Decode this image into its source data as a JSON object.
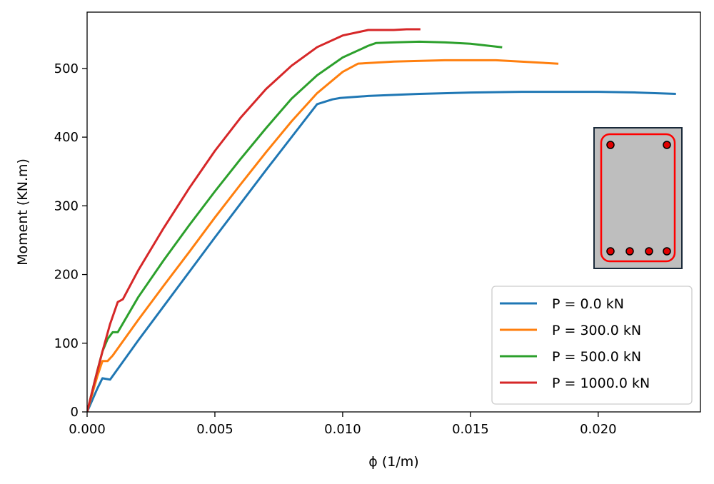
{
  "chart_data": {
    "type": "line",
    "title": "",
    "xlabel": "ϕ (1/m)",
    "ylabel": "Moment (KN.m)",
    "xlim": [
      0.0,
      0.024
    ],
    "ylim": [
      0,
      582
    ],
    "xticks": [
      0.0,
      0.005,
      0.01,
      0.015,
      0.02
    ],
    "xtick_labels": [
      "0.000",
      "0.005",
      "0.010",
      "0.015",
      "0.020"
    ],
    "yticks": [
      0,
      100,
      200,
      300,
      400,
      500
    ],
    "ytick_labels": [
      "0",
      "100",
      "200",
      "300",
      "400",
      "500"
    ],
    "grid": false,
    "legend_position": "lower-right",
    "series": [
      {
        "name": "P = 0.0 kN",
        "color": "#1f77b4",
        "x": [
          0,
          0.0002,
          0.0004,
          0.0006,
          0.0009,
          0.002,
          0.003,
          0.004,
          0.005,
          0.006,
          0.007,
          0.008,
          0.009,
          0.0096,
          0.0099,
          0.011,
          0.013,
          0.015,
          0.017,
          0.0185,
          0.02,
          0.0215,
          0.023
        ],
        "y": [
          0,
          17,
          34,
          49,
          47,
          104,
          154,
          204,
          254,
          303,
          352,
          400,
          448,
          455,
          457,
          460,
          463,
          465,
          466,
          466,
          466,
          465,
          463
        ]
      },
      {
        "name": "P = 300.0 kN",
        "color": "#ff7f0e",
        "x": [
          0,
          0.0002,
          0.0004,
          0.0006,
          0.0008,
          0.001,
          0.002,
          0.003,
          0.004,
          0.005,
          0.006,
          0.007,
          0.008,
          0.009,
          0.01,
          0.0106,
          0.012,
          0.014,
          0.016,
          0.0184
        ],
        "y": [
          0,
          26,
          52,
          74,
          74,
          82,
          134,
          184,
          233,
          283,
          331,
          378,
          423,
          464,
          495,
          507,
          510,
          512,
          512,
          507
        ]
      },
      {
        "name": "P = 500.0 kN",
        "color": "#2ca02c",
        "x": [
          0,
          0.0002,
          0.0004,
          0.0006,
          0.0008,
          0.001,
          0.0012,
          0.002,
          0.003,
          0.004,
          0.005,
          0.006,
          0.007,
          0.008,
          0.009,
          0.01,
          0.011,
          0.0113,
          0.012,
          0.013,
          0.014,
          0.015,
          0.0162
        ],
        "y": [
          0,
          30,
          60,
          88,
          106,
          116,
          116,
          167,
          221,
          272,
          321,
          368,
          413,
          456,
          490,
          516,
          533,
          537,
          538,
          539,
          538,
          536,
          531
        ]
      },
      {
        "name": "P = 1000.0 kN",
        "color": "#d62728",
        "x": [
          0,
          0.0003,
          0.0006,
          0.0009,
          0.0012,
          0.0014,
          0.0016,
          0.002,
          0.003,
          0.004,
          0.005,
          0.006,
          0.007,
          0.008,
          0.009,
          0.01,
          0.011,
          0.012,
          0.0125,
          0.013
        ],
        "y": [
          0,
          45,
          88,
          128,
          160,
          164,
          178,
          206,
          268,
          326,
          380,
          428,
          470,
          504,
          531,
          548,
          556,
          556,
          557,
          557
        ]
      }
    ]
  },
  "inset": {
    "description_icon": "rc-section-icon",
    "fill_color": "#bebebe",
    "stirrup_color": "#ff0000",
    "bar_color": "#e00000"
  }
}
